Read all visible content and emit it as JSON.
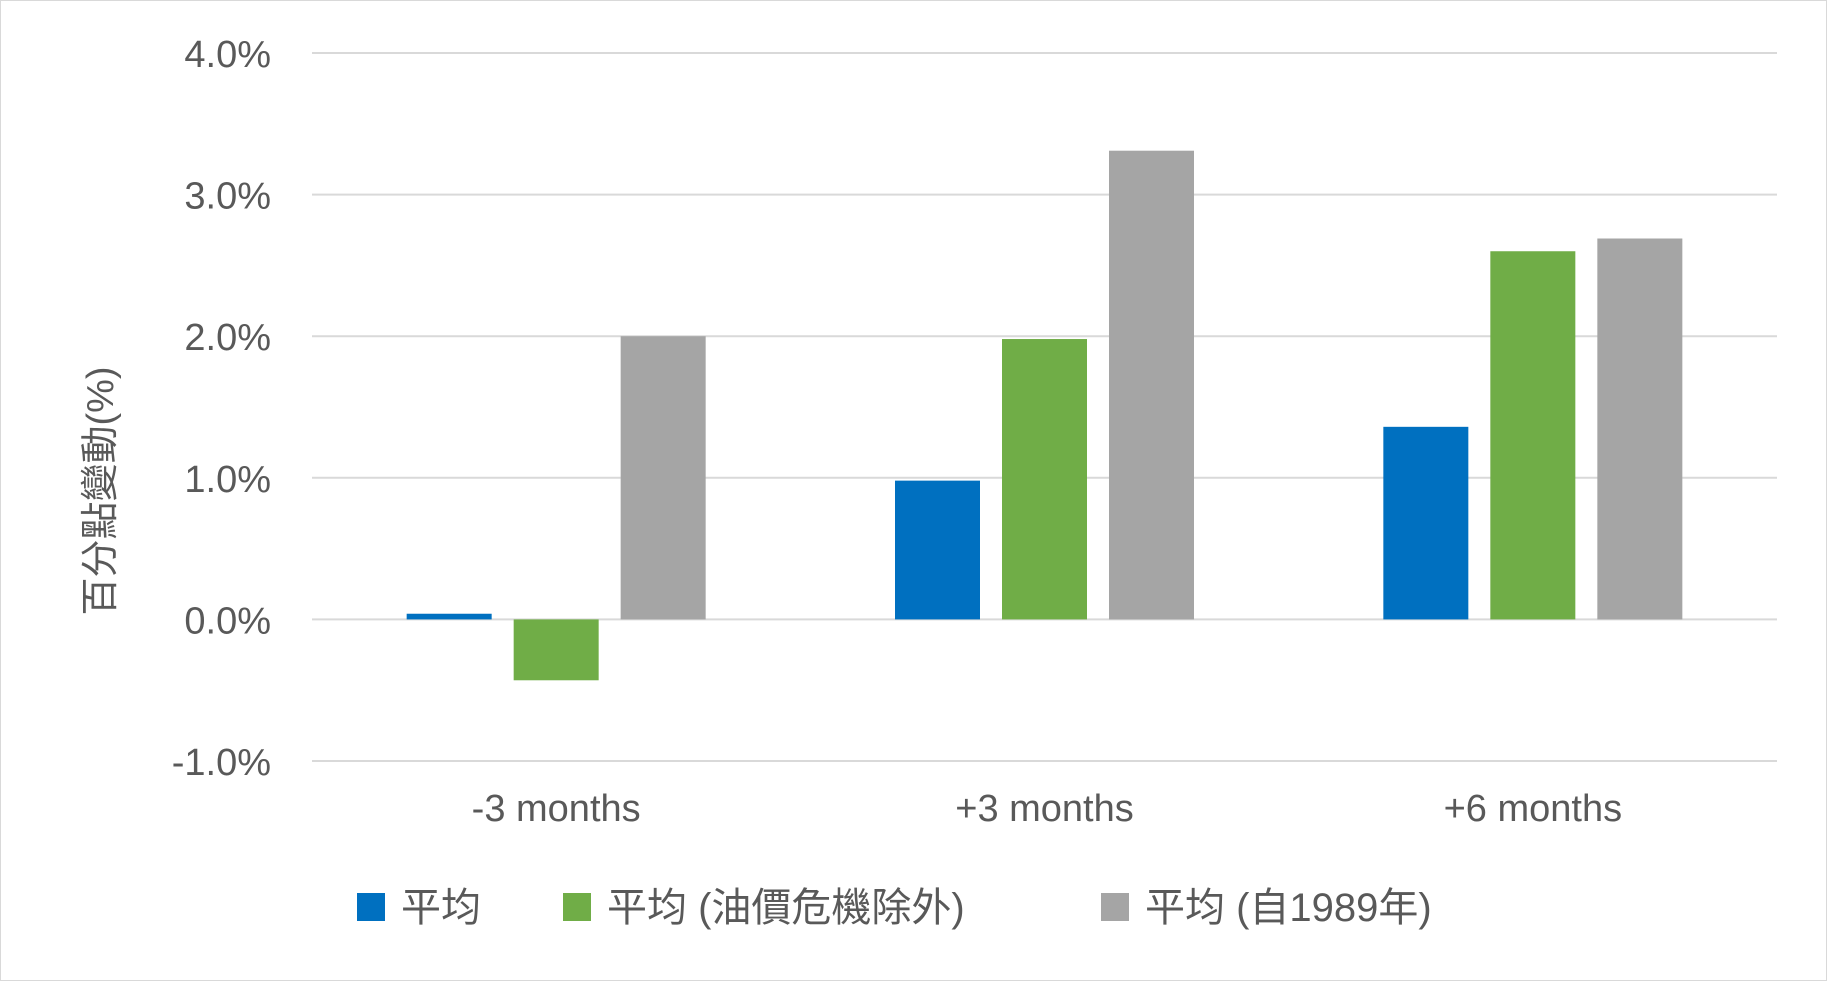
{
  "chart_data": {
    "type": "bar",
    "title": "",
    "xlabel": "",
    "ylabel": "百分點變動(%)",
    "categories": [
      "-3 months",
      "+3 months",
      "+6 months"
    ],
    "series": [
      {
        "name": "平均",
        "color": "#0070c0",
        "values": [
          0.04,
          0.98,
          1.36
        ]
      },
      {
        "name": "平均 (油價危機除外)",
        "color": "#70ad47",
        "values": [
          -0.43,
          1.98,
          2.6
        ]
      },
      {
        "name": "平均 (自1989年)",
        "color": "#a5a5a5",
        "values": [
          2.0,
          3.31,
          2.69
        ]
      }
    ],
    "ylim": [
      -1.0,
      4.0
    ],
    "yticks": [
      -1.0,
      0.0,
      1.0,
      2.0,
      3.0,
      4.0
    ],
    "ytick_labels": [
      "-1.0%",
      "0.0%",
      "1.0%",
      "2.0%",
      "3.0%",
      "4.0%"
    ],
    "grid": true,
    "legend_position": "bottom"
  }
}
